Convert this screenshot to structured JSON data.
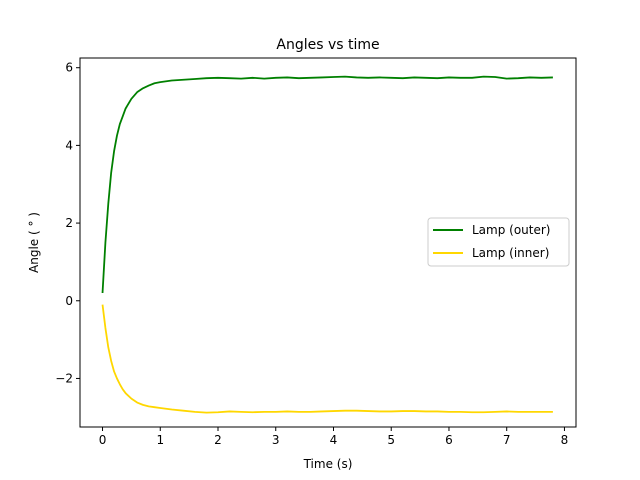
{
  "chart_data": {
    "type": "line",
    "title": "Angles vs time",
    "xlabel": "Time (s)",
    "ylabel": "Angle ( $^\\circ$)",
    "ylabel_display": "Angle ( ° )",
    "xlim": [
      -0.39,
      8.2
    ],
    "ylim": [
      -3.25,
      6.25
    ],
    "xticks": [
      0,
      1,
      2,
      3,
      4,
      5,
      6,
      7,
      8
    ],
    "yticks": [
      -2,
      0,
      2,
      4,
      6
    ],
    "grid": false,
    "legend_position": "center-right",
    "series": [
      {
        "name": "Lamp (outer)",
        "color": "#008000",
        "x": [
          0,
          0.05,
          0.1,
          0.15,
          0.2,
          0.25,
          0.3,
          0.35,
          0.4,
          0.5,
          0.6,
          0.7,
          0.8,
          0.9,
          1.0,
          1.2,
          1.4,
          1.6,
          1.8,
          2.0,
          2.2,
          2.4,
          2.6,
          2.8,
          3.0,
          3.2,
          3.4,
          3.6,
          3.8,
          4.0,
          4.2,
          4.4,
          4.6,
          4.8,
          5.0,
          5.2,
          5.4,
          5.6,
          5.8,
          6.0,
          6.2,
          6.4,
          6.6,
          6.8,
          7.0,
          7.2,
          7.4,
          7.6,
          7.8
        ],
        "y": [
          0.2,
          1.5,
          2.5,
          3.3,
          3.85,
          4.25,
          4.55,
          4.75,
          4.95,
          5.2,
          5.37,
          5.47,
          5.54,
          5.6,
          5.63,
          5.67,
          5.69,
          5.71,
          5.73,
          5.74,
          5.73,
          5.72,
          5.74,
          5.72,
          5.74,
          5.75,
          5.73,
          5.74,
          5.75,
          5.76,
          5.77,
          5.75,
          5.74,
          5.75,
          5.74,
          5.73,
          5.75,
          5.74,
          5.73,
          5.75,
          5.74,
          5.74,
          5.77,
          5.76,
          5.72,
          5.73,
          5.75,
          5.74,
          5.75
        ]
      },
      {
        "name": "Lamp (inner)",
        "color": "#ffd700",
        "x": [
          0,
          0.05,
          0.1,
          0.15,
          0.2,
          0.25,
          0.3,
          0.35,
          0.4,
          0.5,
          0.6,
          0.7,
          0.8,
          0.9,
          1.0,
          1.2,
          1.4,
          1.6,
          1.8,
          2.0,
          2.2,
          2.4,
          2.6,
          2.8,
          3.0,
          3.2,
          3.4,
          3.6,
          3.8,
          4.0,
          4.2,
          4.4,
          4.6,
          4.8,
          5.0,
          5.2,
          5.4,
          5.6,
          5.8,
          6.0,
          6.2,
          6.4,
          6.6,
          6.8,
          7.0,
          7.2,
          7.4,
          7.6,
          7.8
        ],
        "y": [
          -0.1,
          -0.7,
          -1.2,
          -1.55,
          -1.82,
          -2.0,
          -2.15,
          -2.28,
          -2.38,
          -2.52,
          -2.62,
          -2.68,
          -2.72,
          -2.74,
          -2.76,
          -2.8,
          -2.83,
          -2.86,
          -2.88,
          -2.87,
          -2.85,
          -2.86,
          -2.87,
          -2.86,
          -2.86,
          -2.85,
          -2.86,
          -2.86,
          -2.85,
          -2.84,
          -2.83,
          -2.83,
          -2.84,
          -2.85,
          -2.85,
          -2.84,
          -2.84,
          -2.85,
          -2.85,
          -2.86,
          -2.86,
          -2.87,
          -2.87,
          -2.86,
          -2.85,
          -2.86,
          -2.86,
          -2.86,
          -2.86
        ]
      }
    ]
  }
}
